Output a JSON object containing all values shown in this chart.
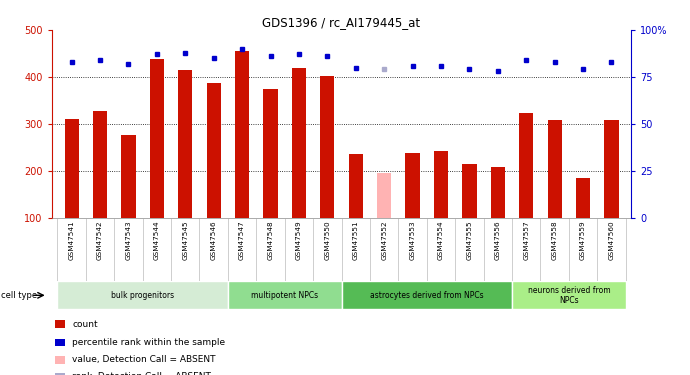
{
  "title": "GDS1396 / rc_AI179445_at",
  "samples": [
    "GSM47541",
    "GSM47542",
    "GSM47543",
    "GSM47544",
    "GSM47545",
    "GSM47546",
    "GSM47547",
    "GSM47548",
    "GSM47549",
    "GSM47550",
    "GSM47551",
    "GSM47552",
    "GSM47553",
    "GSM47554",
    "GSM47555",
    "GSM47556",
    "GSM47557",
    "GSM47558",
    "GSM47559",
    "GSM47560"
  ],
  "counts": [
    310,
    328,
    275,
    438,
    415,
    388,
    455,
    375,
    420,
    402,
    235,
    194,
    238,
    242,
    215,
    208,
    322,
    308,
    185,
    307
  ],
  "ranks": [
    83,
    84,
    82,
    87,
    88,
    85,
    90,
    86,
    87,
    86,
    80,
    79,
    81,
    81,
    79,
    78,
    84,
    83,
    79,
    83
  ],
  "absent_mask": [
    false,
    false,
    false,
    false,
    false,
    false,
    false,
    false,
    false,
    false,
    false,
    true,
    false,
    false,
    false,
    false,
    false,
    false,
    false,
    false
  ],
  "bar_color_normal": "#cc1100",
  "bar_color_absent": "#ffb3b3",
  "dot_color_normal": "#0000cc",
  "dot_color_absent": "#aaaacc",
  "ylim_left": [
    100,
    500
  ],
  "ylim_right": [
    0,
    100
  ],
  "yticks_left": [
    100,
    200,
    300,
    400,
    500
  ],
  "yticks_right": [
    0,
    25,
    50,
    75,
    100
  ],
  "ytick_labels_right": [
    "0",
    "25",
    "50",
    "75",
    "100%"
  ],
  "cell_groups": [
    {
      "label": "bulk progenitors",
      "start": 0,
      "end": 6,
      "color": "#d5ecd5"
    },
    {
      "label": "multipotent NPCs",
      "start": 6,
      "end": 10,
      "color": "#90dd90"
    },
    {
      "label": "astrocytes derived from NPCs",
      "start": 10,
      "end": 16,
      "color": "#55bb55"
    },
    {
      "label": "neurons derived from\nNPCs",
      "start": 16,
      "end": 20,
      "color": "#aaee88"
    }
  ],
  "cell_type_label": "cell type",
  "legend_items": [
    {
      "color": "#cc1100",
      "marker": "s",
      "label": "count"
    },
    {
      "color": "#0000cc",
      "marker": "s",
      "label": "percentile rank within the sample"
    },
    {
      "color": "#ffb3b3",
      "marker": "s",
      "label": "value, Detection Call = ABSENT"
    },
    {
      "color": "#aaaacc",
      "marker": "s",
      "label": "rank, Detection Call = ABSENT"
    }
  ],
  "bar_width": 0.5,
  "xlim": [
    -0.7,
    19.7
  ]
}
